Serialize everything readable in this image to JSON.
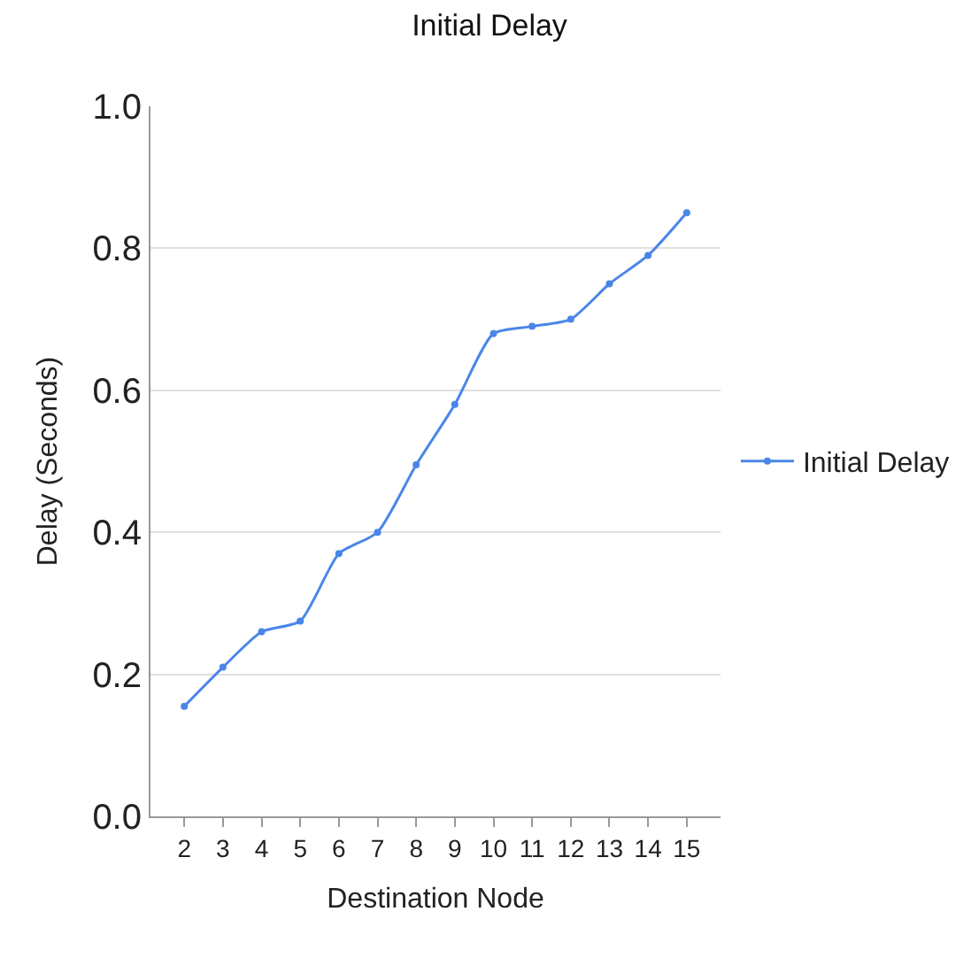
{
  "chart_data": {
    "type": "line",
    "title": "Initial Delay",
    "xlabel": "Destination Node",
    "ylabel": "Delay (Seconds)",
    "categories": [
      "2",
      "3",
      "4",
      "5",
      "6",
      "7",
      "8",
      "9",
      "10",
      "11",
      "12",
      "13",
      "14",
      "15"
    ],
    "series": [
      {
        "name": "Initial Delay",
        "color": "#4a86e8",
        "values": [
          0.155,
          0.21,
          0.26,
          0.275,
          0.37,
          0.4,
          0.495,
          0.58,
          0.68,
          0.69,
          0.7,
          0.75,
          0.79,
          0.85
        ]
      }
    ],
    "ylim": [
      0,
      1.0
    ],
    "yticks": [
      {
        "value": 0,
        "label": "0.0"
      },
      0.2,
      0.4,
      0.6,
      0.8,
      {
        "value": 1.0,
        "label": "1.0"
      }
    ],
    "grid": "y",
    "legend": "right",
    "marker": "circle",
    "line_style": "solid"
  }
}
